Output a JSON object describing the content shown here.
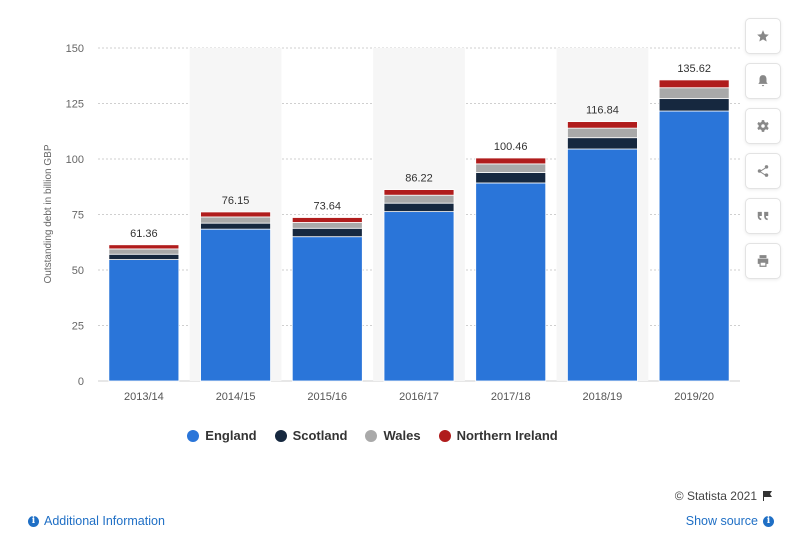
{
  "chart_data": {
    "type": "bar",
    "stacked": true,
    "categories": [
      "2013/14",
      "2014/15",
      "2015/16",
      "2016/17",
      "2017/18",
      "2018/19",
      "2019/20"
    ],
    "series": [
      {
        "name": "England",
        "color": "#2a75d9",
        "values": [
          54.7,
          68.4,
          65.0,
          76.3,
          89.2,
          104.5,
          121.6
        ]
      },
      {
        "name": "Scotland",
        "color": "#16283f",
        "values": [
          2.4,
          2.7,
          3.8,
          3.8,
          4.7,
          5.1,
          5.6
        ]
      },
      {
        "name": "Wales",
        "color": "#a9a9a9",
        "values": [
          2.4,
          2.8,
          2.6,
          3.6,
          3.9,
          4.3,
          4.9
        ]
      },
      {
        "name": "Northern Ireland",
        "color": "#b01c1c",
        "values": [
          1.86,
          2.25,
          2.24,
          2.52,
          2.66,
          2.94,
          3.52
        ]
      }
    ],
    "totals": [
      "61.36",
      "76.15",
      "73.64",
      "86.22",
      "100.46",
      "116.84",
      "135.62"
    ],
    "ylabel": "Outstanding debt in billion GBP",
    "xlabel": "",
    "ylim": [
      0,
      150
    ],
    "yticks": [
      0,
      25,
      50,
      75,
      100,
      125,
      150
    ],
    "grid": true,
    "legend_position": "bottom"
  },
  "legend": {
    "items": [
      "England",
      "Scotland",
      "Wales",
      "Northern Ireland"
    ]
  },
  "footer": {
    "credit": "© Statista 2021",
    "additional_info": "Additional Information",
    "show_source": "Show source"
  },
  "toolbar": {
    "icons": [
      "star-icon",
      "bell-icon",
      "gear-icon",
      "share-icon",
      "quote-icon",
      "print-icon"
    ]
  }
}
